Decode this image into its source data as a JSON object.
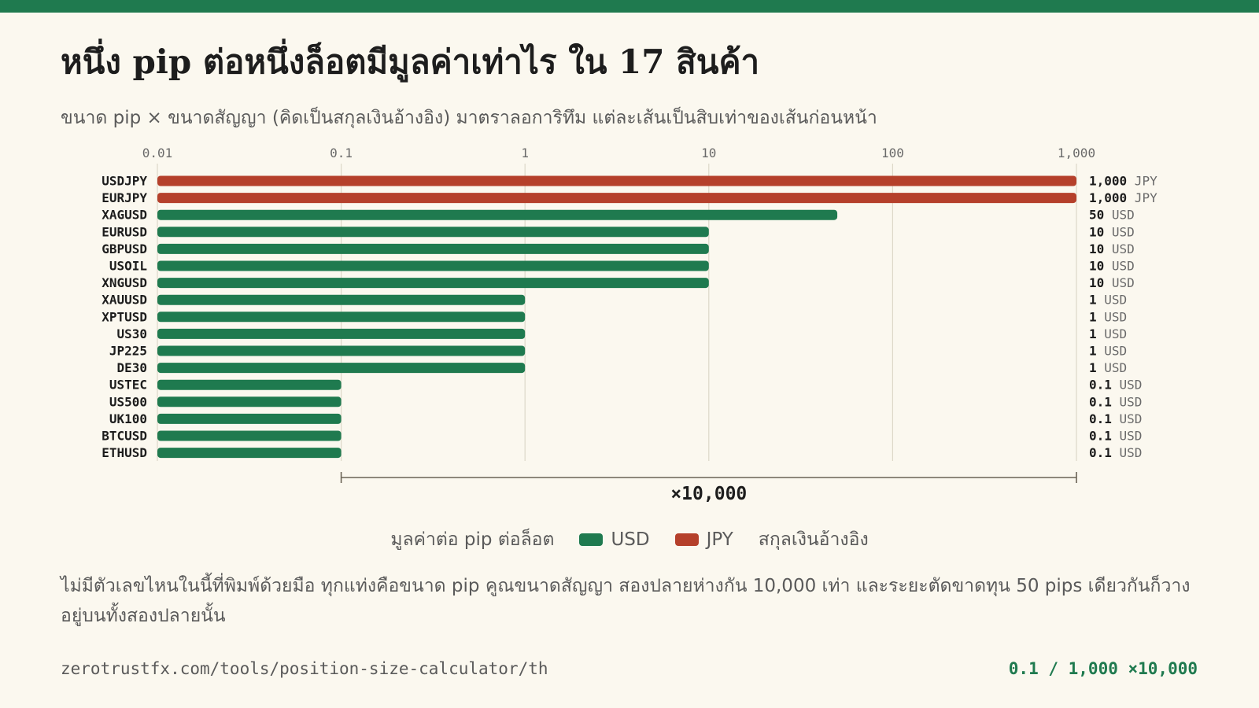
{
  "header": {
    "title": "หนึ่ง pip ต่อหนึ่งล็อตมีมูลค่าเท่าไร ใน 17 สินค้า",
    "subtitle": "ขนาด pip × ขนาดสัญญา (คิดเป็นสกุลเงินอ้างอิง) มาตราลอการิทึม แต่ละเส้นเป็นสิบเท่าของเส้นก่อนหน้า"
  },
  "chart_data": {
    "type": "bar",
    "orientation": "horizontal",
    "x_scale": "log",
    "xlim": [
      0.01,
      1000
    ],
    "ticks": [
      0.01,
      0.1,
      1,
      10,
      100,
      1000
    ],
    "tick_labels": [
      "0.01",
      "0.1",
      "1",
      "10",
      "100",
      "1,000"
    ],
    "grid": true,
    "categories": [
      "USDJPY",
      "EURJPY",
      "XAGUSD",
      "EURUSD",
      "GBPUSD",
      "USOIL",
      "XNGUSD",
      "XAUUSD",
      "XPTUSD",
      "US30",
      "JP225",
      "DE30",
      "USTEC",
      "US500",
      "UK100",
      "BTCUSD",
      "ETHUSD"
    ],
    "values": [
      1000,
      1000,
      50,
      10,
      10,
      10,
      10,
      1,
      1,
      1,
      1,
      1,
      0.1,
      0.1,
      0.1,
      0.1,
      0.1
    ],
    "value_labels": [
      "1,000",
      "1,000",
      "50",
      "10",
      "10",
      "10",
      "10",
      "1",
      "1",
      "1",
      "1",
      "1",
      "0.1",
      "0.1",
      "0.1",
      "0.1",
      "0.1"
    ],
    "currency": [
      "JPY",
      "JPY",
      "USD",
      "USD",
      "USD",
      "USD",
      "USD",
      "USD",
      "USD",
      "USD",
      "USD",
      "USD",
      "USD",
      "USD",
      "USD",
      "USD",
      "USD"
    ],
    "colors": {
      "USD": "#1f7a4f",
      "JPY": "#b5402b"
    },
    "span_annotation": {
      "from": 0.1,
      "to": 1000,
      "label": "×10,000"
    },
    "legend": {
      "title": "มูลค่าต่อ pip ต่อล็อต",
      "entries": [
        "USD",
        "JPY"
      ],
      "suffix": "สกุลเงินอ้างอิง",
      "placement": "bottom-center"
    }
  },
  "note": "ไม่มีตัวเลขไหนในนี้ที่พิมพ์ด้วยมือ ทุกแท่งคือขนาด pip คูณขนาดสัญญา สองปลายห่างกัน 10,000 เท่า และระยะตัดขาดทุน 50 pips เดียวกันก็วางอยู่บนทั้งสองปลายนั้น",
  "footer": {
    "url": "zerotrustfx.com/tools/position-size-calculator/th",
    "ratio": "0.1 / 1,000 ×10,000"
  }
}
